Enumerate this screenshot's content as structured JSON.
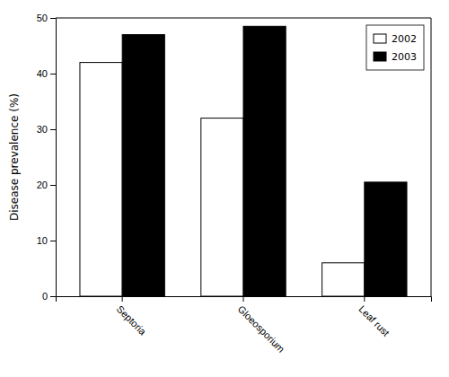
{
  "chart_data": {
    "type": "bar",
    "categories": [
      "Septoria",
      "Gloeosporium",
      "Leaf rust"
    ],
    "series": [
      {
        "name": "2002",
        "color": "#ffffff",
        "values": [
          42,
          32,
          6
        ]
      },
      {
        "name": "2003",
        "color": "#000000",
        "values": [
          47,
          48.5,
          20.5
        ]
      }
    ],
    "y_label": "Disease prevalence (%)",
    "ylim": [
      0,
      50
    ],
    "yticks": [
      0,
      10,
      20,
      30,
      40,
      50
    ],
    "legend": "upper right",
    "grid": false
  }
}
